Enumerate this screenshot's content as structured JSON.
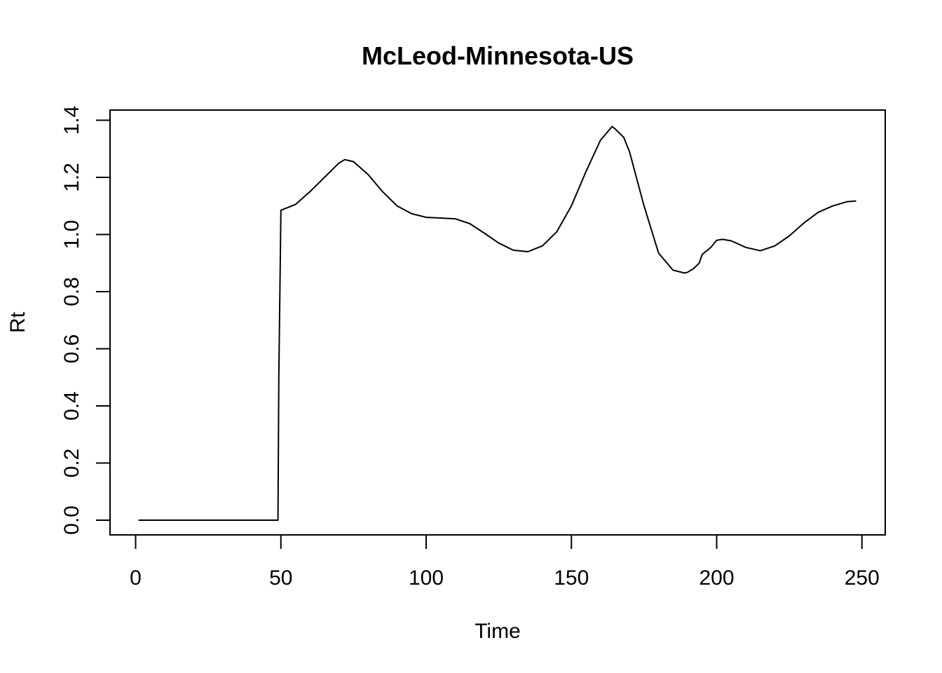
{
  "chart_data": {
    "type": "line",
    "title": "McLeod-Minnesota-US",
    "xlabel": "Time",
    "ylabel": "Rt",
    "xlim": [
      1,
      248
    ],
    "ylim": [
      0,
      1.4
    ],
    "x_ticks": [
      0,
      50,
      100,
      150,
      200,
      250
    ],
    "y_ticks": [
      0.0,
      0.2,
      0.4,
      0.6,
      0.8,
      1.0,
      1.2,
      1.4
    ],
    "x_tick_labels": [
      "0",
      "50",
      "100",
      "150",
      "200",
      "250"
    ],
    "y_tick_labels": [
      "0.0",
      "0.2",
      "0.4",
      "0.6",
      "0.8",
      "1.0",
      "1.2",
      "1.4"
    ],
    "grid": false,
    "legend": "none",
    "series": [
      {
        "color": "#000000",
        "x": [
          1,
          10,
          20,
          30,
          40,
          49,
          49.3,
          50,
          55,
          60,
          65,
          70,
          72,
          75,
          80,
          85,
          90,
          95,
          100,
          110,
          115,
          120,
          125,
          130,
          135,
          140,
          145,
          150,
          155,
          160,
          164,
          165,
          168,
          170,
          175,
          180,
          185,
          189,
          190,
          192,
          194,
          195,
          198,
          200,
          202,
          205,
          210,
          215,
          220,
          225,
          230,
          235,
          240,
          245,
          248
        ],
        "y": [
          0,
          0,
          0,
          0,
          0,
          0,
          0.5,
          1.085,
          1.105,
          1.15,
          1.2,
          1.25,
          1.262,
          1.255,
          1.21,
          1.15,
          1.1,
          1.073,
          1.06,
          1.055,
          1.038,
          1.005,
          0.97,
          0.945,
          0.94,
          0.96,
          1.01,
          1.1,
          1.22,
          1.33,
          1.378,
          1.37,
          1.34,
          1.29,
          1.1,
          0.935,
          0.875,
          0.865,
          0.868,
          0.88,
          0.9,
          0.93,
          0.955,
          0.98,
          0.983,
          0.978,
          0.955,
          0.943,
          0.96,
          0.995,
          1.04,
          1.078,
          1.1,
          1.115,
          1.117
        ]
      }
    ]
  }
}
